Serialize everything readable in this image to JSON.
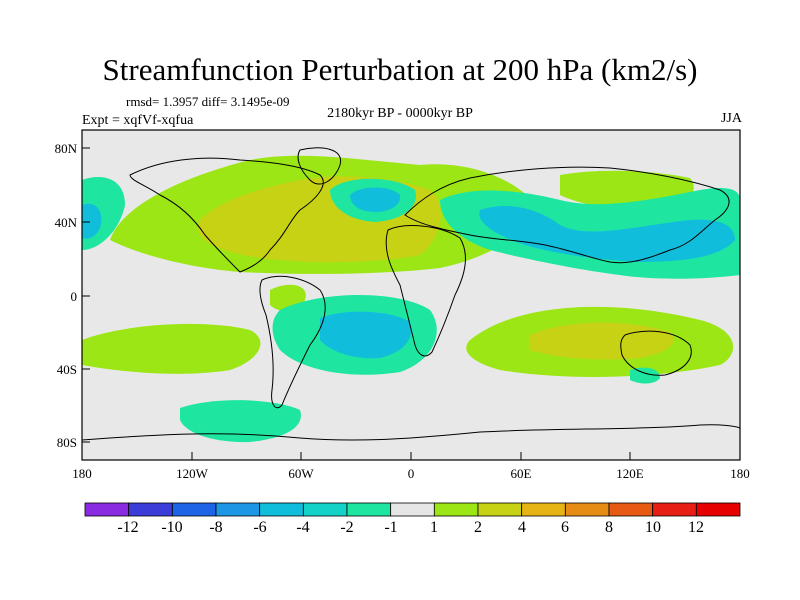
{
  "figure": {
    "title": "Streamfunction Perturbation at 200 hPa (km2/s)",
    "stats": "rmsd= 1.3957 diff= 3.1495e-09",
    "experiment": "Expt = xqfVf-xqfua",
    "period": "2180kyr BP - 0000kyr BP",
    "season": "JJA"
  },
  "axes": {
    "lon_ticks": [
      "180",
      "120W",
      "60W",
      "0",
      "60E",
      "120E",
      "180"
    ],
    "lat_ticks": [
      "80N",
      "40N",
      "0",
      "40S",
      "80S"
    ]
  },
  "colorbar": {
    "labels": [
      "-12",
      "-10",
      "-8",
      "-6",
      "-4",
      "-2",
      "-1",
      "1",
      "2",
      "4",
      "6",
      "8",
      "10",
      "12"
    ],
    "colors": [
      "#8a2be2",
      "#3c3cd8",
      "#1e64e6",
      "#1e96e6",
      "#10bedc",
      "#14d2c8",
      "#1ee6a0",
      "#e6e6e6",
      "#9be614",
      "#c8d214",
      "#e6b414",
      "#e68c14",
      "#e65a14",
      "#e61e14",
      "#e60000"
    ]
  },
  "chart_data": {
    "type": "contour_map",
    "variable": "Streamfunction Perturbation at 200 hPa (km2/s)",
    "lon_range": [
      -180,
      180
    ],
    "lat_range": [
      -90,
      90
    ],
    "levels": [
      -12,
      -10,
      -8,
      -6,
      -4,
      -2,
      -1,
      1,
      2,
      4,
      6,
      8,
      10,
      12
    ],
    "regions": [
      {
        "name": "North Atlantic / Central America positive",
        "center": [
          -60,
          30
        ],
        "approx_value": 4
      },
      {
        "name": "Central Asia positive",
        "center": [
          70,
          50
        ],
        "approx_value": 2
      },
      {
        "name": "North Atlantic negative",
        "center": [
          -20,
          50
        ],
        "approx_value": -2
      },
      {
        "name": "Eastern Asia / Pacific negative",
        "center": [
          120,
          30
        ],
        "approx_value": -4
      },
      {
        "name": "South Atlantic negative",
        "center": [
          -20,
          -25
        ],
        "approx_value": -4
      },
      {
        "name": "Indian Ocean / Australia positive",
        "center": [
          80,
          -30
        ],
        "approx_value": 4
      },
      {
        "name": "South Pacific positive",
        "center": [
          -130,
          -30
        ],
        "approx_value": 2
      },
      {
        "name": "Southern Ocean negative",
        "center": [
          -120,
          -70
        ],
        "approx_value": -2
      }
    ]
  }
}
